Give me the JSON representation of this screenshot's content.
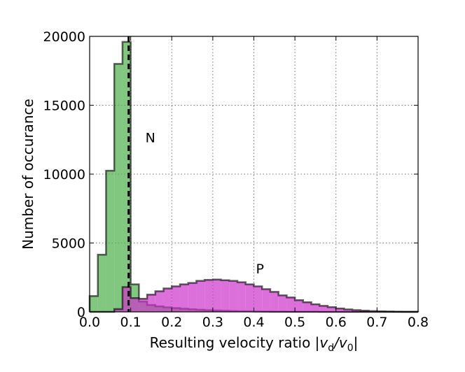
{
  "chart_data": {
    "type": "histogram",
    "xlabel": "Resulting velocity ratio |v_d/v_0|",
    "xlabel_parts": {
      "prefix": "Resulting velocity ratio ",
      "math_open": "|v",
      "sub1": "d",
      "mid": "/v",
      "sub2": "0",
      "math_close": "|"
    },
    "ylabel": "Number of occurance",
    "xlim": [
      0.0,
      0.8
    ],
    "ylim": [
      0,
      20000
    ],
    "xticks": [
      "0.0",
      "0.1",
      "0.2",
      "0.3",
      "0.4",
      "0.5",
      "0.6",
      "0.7",
      "0.8"
    ],
    "yticks": [
      "0",
      "5000",
      "10000",
      "15000",
      "20000"
    ],
    "grid": true,
    "bin_width": 0.02,
    "series": [
      {
        "label": "N",
        "color": "#4daf4a",
        "bin_start": 0.0,
        "values": [
          1150,
          4150,
          10250,
          18000,
          19600,
          2000,
          750,
          500,
          400,
          330,
          280,
          230,
          190,
          150,
          120,
          100,
          80,
          60,
          45,
          35,
          25,
          20,
          15,
          10,
          8,
          6,
          5,
          4,
          3,
          2,
          2,
          1,
          1,
          1,
          1,
          0,
          0,
          0,
          0,
          0
        ]
      },
      {
        "label": "P",
        "color": "#cc33cc",
        "bin_start": 0.0,
        "values": [
          0,
          0,
          0,
          200,
          1800,
          1000,
          950,
          1250,
          1500,
          1700,
          1850,
          2000,
          2100,
          2250,
          2320,
          2350,
          2300,
          2250,
          2150,
          2000,
          1850,
          1650,
          1450,
          1200,
          1050,
          850,
          700,
          550,
          440,
          340,
          250,
          180,
          130,
          90,
          60,
          40,
          25,
          15,
          8,
          4
        ]
      }
    ],
    "reference_line": {
      "x": 0.095,
      "style": "dashed",
      "color": "#000000"
    },
    "annotations": [
      {
        "text": "N",
        "x": 0.148,
        "y": 12300
      },
      {
        "text": "P",
        "x": 0.415,
        "y": 2800
      }
    ]
  }
}
